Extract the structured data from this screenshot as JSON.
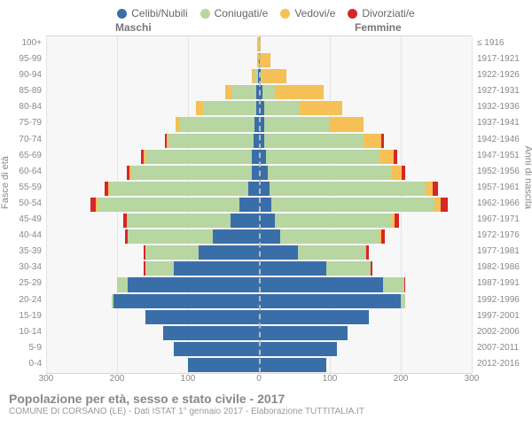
{
  "legend": [
    {
      "label": "Celibi/Nubili",
      "color": "#3a6ea8"
    },
    {
      "label": "Coniugati/e",
      "color": "#b7d6a1"
    },
    {
      "label": "Vedovi/e",
      "color": "#f5c056"
    },
    {
      "label": "Divorziati/e",
      "color": "#d62728"
    }
  ],
  "header_male": "Maschi",
  "header_female": "Femmine",
  "axis_left": "Fasce di età",
  "axis_right": "Anni di nascita",
  "footer_title": "Popolazione per età, sesso e stato civile - 2017",
  "footer_sub": "COMUNE DI CORSANO (LE) - Dati ISTAT 1° gennaio 2017 - Elaborazione TUTTITALIA.IT",
  "colors": {
    "celibi": "#3a6ea8",
    "coniugati": "#b7d6a1",
    "vedovi": "#f5c056",
    "divorziati": "#d62728",
    "plot_bg": "#f7f7f7",
    "grid": "#e4e4e4",
    "center": "#bcbcbc"
  },
  "x_axis": {
    "min": -300,
    "max": 300,
    "ticks": [
      -300,
      -200,
      -100,
      0,
      100,
      200,
      300
    ],
    "labels": [
      "300",
      "200",
      "100",
      "0",
      "100",
      "200",
      "300"
    ]
  },
  "age_bands": [
    "100+",
    "95-99",
    "90-94",
    "85-89",
    "80-84",
    "75-79",
    "70-74",
    "65-69",
    "60-64",
    "55-59",
    "50-54",
    "45-49",
    "40-44",
    "35-39",
    "30-34",
    "25-29",
    "20-24",
    "15-19",
    "10-14",
    "5-9",
    "0-4"
  ],
  "birth_years": [
    "≤ 1916",
    "1917-1921",
    "1922-1926",
    "1927-1931",
    "1932-1936",
    "1937-1941",
    "1942-1946",
    "1947-1951",
    "1952-1956",
    "1957-1961",
    "1962-1966",
    "1967-1971",
    "1972-1976",
    "1977-1981",
    "1982-1986",
    "1987-1991",
    "1992-1996",
    "1997-2001",
    "2002-2006",
    "2007-2011",
    "2012-2016"
  ],
  "pyramid": [
    {
      "m": {
        "c": 0,
        "g": 0,
        "v": 2,
        "d": 0
      },
      "f": {
        "c": 0,
        "g": 0,
        "v": 2,
        "d": 0
      }
    },
    {
      "m": {
        "c": 0,
        "g": 0,
        "v": 3,
        "d": 0
      },
      "f": {
        "c": 1,
        "g": 0,
        "v": 15,
        "d": 0
      }
    },
    {
      "m": {
        "c": 1,
        "g": 5,
        "v": 4,
        "d": 0
      },
      "f": {
        "c": 2,
        "g": 2,
        "v": 35,
        "d": 0
      }
    },
    {
      "m": {
        "c": 4,
        "g": 35,
        "v": 8,
        "d": 0
      },
      "f": {
        "c": 5,
        "g": 18,
        "v": 68,
        "d": 0
      }
    },
    {
      "m": {
        "c": 4,
        "g": 75,
        "v": 10,
        "d": 0
      },
      "f": {
        "c": 7,
        "g": 50,
        "v": 60,
        "d": 0
      }
    },
    {
      "m": {
        "c": 6,
        "g": 105,
        "v": 6,
        "d": 0
      },
      "f": {
        "c": 8,
        "g": 92,
        "v": 48,
        "d": 0
      }
    },
    {
      "m": {
        "c": 7,
        "g": 120,
        "v": 3,
        "d": 3
      },
      "f": {
        "c": 8,
        "g": 140,
        "v": 25,
        "d": 3
      }
    },
    {
      "m": {
        "c": 10,
        "g": 150,
        "v": 3,
        "d": 3
      },
      "f": {
        "c": 10,
        "g": 160,
        "v": 20,
        "d": 5
      }
    },
    {
      "m": {
        "c": 10,
        "g": 170,
        "v": 2,
        "d": 4
      },
      "f": {
        "c": 12,
        "g": 175,
        "v": 14,
        "d": 5
      }
    },
    {
      "m": {
        "c": 15,
        "g": 195,
        "v": 2,
        "d": 6
      },
      "f": {
        "c": 15,
        "g": 220,
        "v": 10,
        "d": 8
      }
    },
    {
      "m": {
        "c": 28,
        "g": 200,
        "v": 2,
        "d": 8
      },
      "f": {
        "c": 18,
        "g": 230,
        "v": 8,
        "d": 10
      }
    },
    {
      "m": {
        "c": 40,
        "g": 145,
        "v": 1,
        "d": 5
      },
      "f": {
        "c": 22,
        "g": 165,
        "v": 4,
        "d": 6
      }
    },
    {
      "m": {
        "c": 65,
        "g": 120,
        "v": 0,
        "d": 4
      },
      "f": {
        "c": 30,
        "g": 140,
        "v": 2,
        "d": 6
      }
    },
    {
      "m": {
        "c": 85,
        "g": 75,
        "v": 0,
        "d": 3
      },
      "f": {
        "c": 55,
        "g": 95,
        "v": 1,
        "d": 4
      }
    },
    {
      "m": {
        "c": 120,
        "g": 40,
        "v": 0,
        "d": 2
      },
      "f": {
        "c": 95,
        "g": 62,
        "v": 0,
        "d": 3
      }
    },
    {
      "m": {
        "c": 185,
        "g": 15,
        "v": 0,
        "d": 0
      },
      "f": {
        "c": 175,
        "g": 30,
        "v": 0,
        "d": 1
      }
    },
    {
      "m": {
        "c": 205,
        "g": 3,
        "v": 0,
        "d": 0
      },
      "f": {
        "c": 200,
        "g": 6,
        "v": 0,
        "d": 0
      }
    },
    {
      "m": {
        "c": 160,
        "g": 0,
        "v": 0,
        "d": 0
      },
      "f": {
        "c": 155,
        "g": 0,
        "v": 0,
        "d": 0
      }
    },
    {
      "m": {
        "c": 135,
        "g": 0,
        "v": 0,
        "d": 0
      },
      "f": {
        "c": 125,
        "g": 0,
        "v": 0,
        "d": 0
      }
    },
    {
      "m": {
        "c": 120,
        "g": 0,
        "v": 0,
        "d": 0
      },
      "f": {
        "c": 110,
        "g": 0,
        "v": 0,
        "d": 0
      }
    },
    {
      "m": {
        "c": 100,
        "g": 0,
        "v": 0,
        "d": 0
      },
      "f": {
        "c": 95,
        "g": 0,
        "v": 0,
        "d": 0
      }
    }
  ]
}
